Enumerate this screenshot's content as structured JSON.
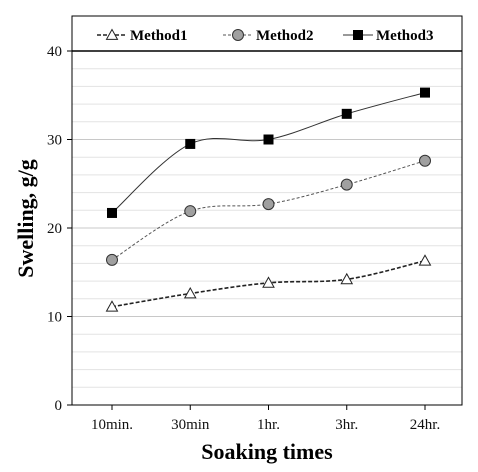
{
  "chart_data": {
    "type": "line",
    "title": "",
    "xlabel": "Soaking times",
    "ylabel": "Swelling, g/g",
    "categories": [
      "10min.",
      "30min",
      "1hr.",
      "3hr.",
      "24hr."
    ],
    "ylim": [
      0,
      40
    ],
    "yticks": [
      0,
      10,
      20,
      30,
      40
    ],
    "grid": "horizontal",
    "legend_position": "top",
    "series": [
      {
        "name": "Method1",
        "values": [
          11.1,
          12.6,
          13.8,
          14.2,
          16.3
        ],
        "marker": "triangle-open",
        "line": "dashed-dark",
        "color": "#222222"
      },
      {
        "name": "Method2",
        "values": [
          16.4,
          21.9,
          22.7,
          24.9,
          27.6
        ],
        "marker": "circle-gray",
        "line": "dashed-thin",
        "color": "#555555"
      },
      {
        "name": "Method3",
        "values": [
          21.7,
          29.5,
          30.0,
          32.9,
          35.3
        ],
        "marker": "square-black",
        "line": "solid-thin",
        "color": "#111111"
      }
    ]
  }
}
